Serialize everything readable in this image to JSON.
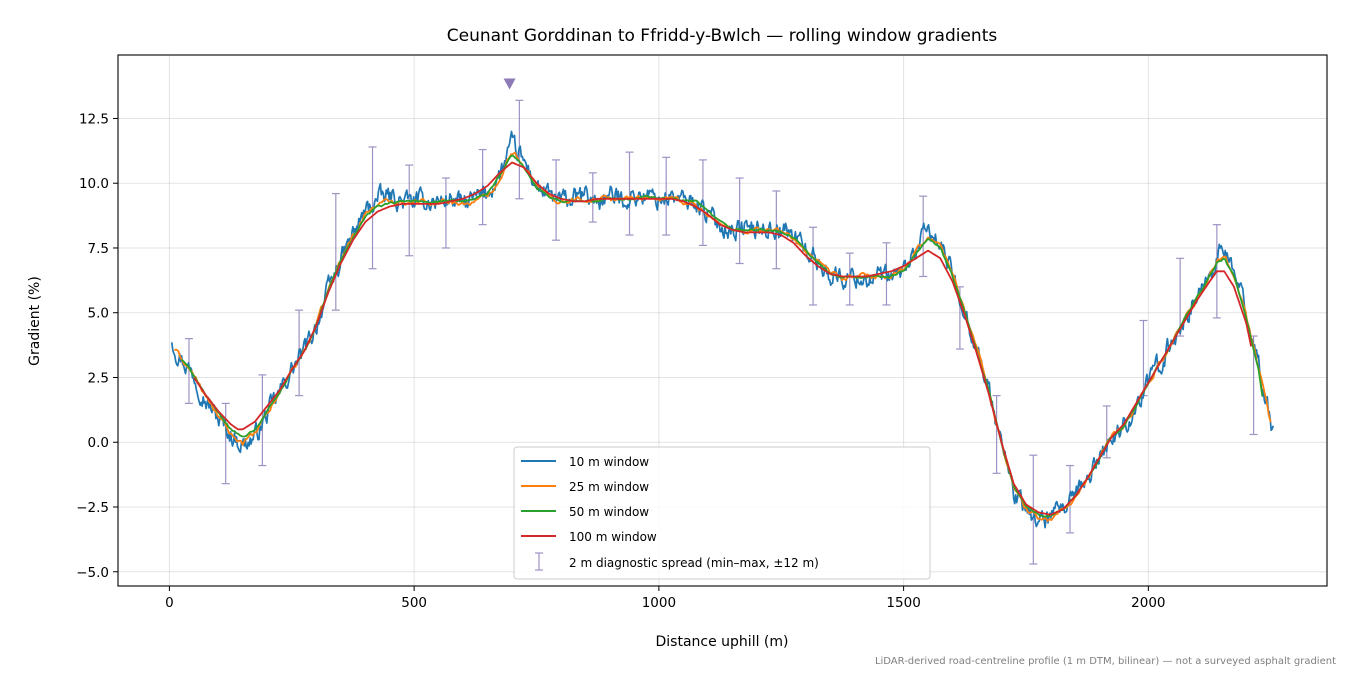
{
  "chart_data": {
    "type": "line",
    "title": "Ceunant Gorddinan to Ffridd-y-Bwlch — rolling window gradients",
    "xlabel": "Distance uphill (m)",
    "ylabel": "Gradient (%)",
    "xlim": [
      -105,
      2365
    ],
    "ylim": [
      -5.55,
      14.95
    ],
    "xticks": [
      0,
      500,
      1000,
      1500,
      2000
    ],
    "xtick_labels": [
      "0",
      "500",
      "1000",
      "1500",
      "2000"
    ],
    "yticks": [
      -5.0,
      -2.5,
      0.0,
      2.5,
      5.0,
      7.5,
      10.0,
      12.5
    ],
    "ytick_labels": [
      "−5.0",
      "−2.5",
      "0.0",
      "2.5",
      "5.0",
      "7.5",
      "10.0",
      "12.5"
    ],
    "grid": true,
    "legend_position": "lower center",
    "footnote": "LiDAR-derived road-centreline profile (1 m DTM, bilinear) — not a surveyed asphalt gradient",
    "peak_marker": {
      "x": 695,
      "y": 13.85
    },
    "series": [
      {
        "name": "10 m window",
        "color": "#1f77b4",
        "noise": 0.32,
        "x": [
          5,
          15,
          30,
          50,
          75,
          100,
          125,
          150,
          175,
          200,
          225,
          250,
          275,
          300,
          325,
          350,
          375,
          400,
          425,
          450,
          475,
          500,
          525,
          550,
          575,
          600,
          625,
          650,
          675,
          700,
          725,
          750,
          775,
          800,
          825,
          850,
          875,
          900,
          925,
          950,
          975,
          1000,
          1025,
          1050,
          1075,
          1100,
          1125,
          1150,
          1175,
          1200,
          1225,
          1250,
          1275,
          1300,
          1325,
          1350,
          1375,
          1400,
          1425,
          1450,
          1475,
          1500,
          1525,
          1550,
          1575,
          1600,
          1625,
          1650,
          1675,
          1700,
          1725,
          1750,
          1775,
          1800,
          1825,
          1850,
          1875,
          1900,
          1925,
          1950,
          1975,
          2000,
          2025,
          2050,
          2075,
          2100,
          2125,
          2140,
          2155,
          2175,
          2200,
          2225,
          2240,
          2255
        ],
        "y": [
          4.0,
          3.5,
          3.1,
          2.6,
          1.6,
          0.9,
          0.3,
          -0.1,
          0.2,
          1.1,
          1.9,
          2.8,
          3.5,
          4.5,
          5.9,
          7.0,
          8.0,
          8.9,
          9.4,
          9.5,
          9.3,
          9.3,
          9.3,
          9.3,
          9.4,
          9.2,
          9.4,
          9.6,
          10.3,
          11.5,
          10.8,
          9.9,
          9.5,
          9.3,
          9.4,
          9.5,
          9.3,
          9.5,
          9.4,
          9.5,
          9.5,
          9.4,
          9.5,
          9.3,
          9.3,
          8.8,
          8.4,
          8.2,
          8.3,
          8.2,
          8.3,
          8.2,
          8.0,
          7.5,
          6.9,
          6.5,
          6.3,
          6.4,
          6.3,
          6.4,
          6.3,
          6.6,
          7.4,
          8.2,
          7.6,
          6.5,
          5.1,
          3.6,
          1.9,
          0.0,
          -1.9,
          -2.7,
          -3.0,
          -3.0,
          -2.6,
          -2.2,
          -1.4,
          -0.6,
          0.2,
          0.6,
          1.4,
          2.3,
          3.1,
          3.9,
          4.8,
          5.6,
          6.5,
          7.1,
          7.4,
          6.6,
          5.0,
          3.0,
          1.5,
          0.5
        ]
      },
      {
        "name": "25 m window",
        "color": "#ff7f0e",
        "noise": 0.1,
        "x": [
          10,
          30,
          50,
          75,
          100,
          125,
          150,
          175,
          200,
          225,
          250,
          275,
          300,
          325,
          350,
          375,
          400,
          425,
          450,
          475,
          500,
          525,
          550,
          575,
          600,
          625,
          650,
          675,
          700,
          725,
          750,
          775,
          800,
          825,
          850,
          875,
          900,
          925,
          950,
          975,
          1000,
          1025,
          1050,
          1075,
          1100,
          1125,
          1150,
          1175,
          1200,
          1225,
          1250,
          1275,
          1300,
          1325,
          1350,
          1375,
          1400,
          1425,
          1450,
          1475,
          1500,
          1525,
          1550,
          1575,
          1600,
          1625,
          1650,
          1675,
          1700,
          1725,
          1750,
          1775,
          1800,
          1825,
          1850,
          1875,
          1900,
          1925,
          1950,
          1975,
          2000,
          2025,
          2050,
          2075,
          2100,
          2125,
          2140,
          2155,
          2175,
          2200,
          2225,
          2250
        ],
        "y": [
          3.6,
          3.1,
          2.6,
          1.7,
          1.0,
          0.3,
          0.0,
          0.3,
          1.1,
          1.9,
          2.8,
          3.5,
          4.5,
          5.9,
          7.0,
          8.0,
          8.8,
          9.2,
          9.3,
          9.3,
          9.3,
          9.3,
          9.3,
          9.3,
          9.2,
          9.3,
          9.5,
          10.2,
          11.3,
          10.7,
          9.9,
          9.5,
          9.3,
          9.4,
          9.4,
          9.4,
          9.4,
          9.4,
          9.4,
          9.5,
          9.4,
          9.4,
          9.3,
          9.2,
          8.8,
          8.4,
          8.2,
          8.2,
          8.2,
          8.2,
          8.1,
          7.9,
          7.4,
          6.9,
          6.5,
          6.3,
          6.4,
          6.4,
          6.4,
          6.4,
          6.6,
          7.3,
          8.0,
          7.6,
          6.5,
          5.1,
          3.6,
          1.9,
          0.0,
          -1.8,
          -2.6,
          -2.9,
          -3.0,
          -2.6,
          -2.2,
          -1.4,
          -0.6,
          0.2,
          0.6,
          1.4,
          2.3,
          3.1,
          3.9,
          4.8,
          5.6,
          6.4,
          7.0,
          7.2,
          6.5,
          4.9,
          2.9,
          0.7
        ]
      },
      {
        "name": "50 m window",
        "color": "#2ca02c",
        "noise": 0.04,
        "x": [
          25,
          50,
          75,
          100,
          125,
          150,
          175,
          200,
          225,
          250,
          275,
          300,
          325,
          350,
          375,
          400,
          425,
          450,
          475,
          500,
          525,
          550,
          575,
          600,
          625,
          650,
          675,
          700,
          725,
          750,
          775,
          800,
          825,
          850,
          875,
          900,
          925,
          950,
          975,
          1000,
          1025,
          1050,
          1075,
          1100,
          1125,
          1150,
          1175,
          1200,
          1225,
          1250,
          1275,
          1300,
          1325,
          1350,
          1375,
          1400,
          1425,
          1450,
          1475,
          1500,
          1525,
          1550,
          1575,
          1600,
          1625,
          1650,
          1675,
          1700,
          1725,
          1750,
          1775,
          1800,
          1825,
          1850,
          1875,
          1900,
          1925,
          1950,
          1975,
          2000,
          2025,
          2050,
          2075,
          2100,
          2125,
          2140,
          2155,
          2175,
          2200,
          2225,
          2235
        ],
        "y": [
          3.2,
          2.6,
          1.8,
          1.1,
          0.5,
          0.2,
          0.5,
          1.2,
          1.9,
          2.8,
          3.5,
          4.5,
          5.9,
          7.0,
          7.9,
          8.7,
          9.1,
          9.2,
          9.3,
          9.3,
          9.3,
          9.3,
          9.3,
          9.3,
          9.4,
          9.6,
          10.3,
          11.1,
          10.6,
          9.8,
          9.5,
          9.3,
          9.3,
          9.3,
          9.3,
          9.4,
          9.4,
          9.4,
          9.5,
          9.4,
          9.4,
          9.3,
          9.3,
          8.9,
          8.5,
          8.2,
          8.2,
          8.2,
          8.2,
          8.1,
          7.9,
          7.4,
          6.9,
          6.5,
          6.4,
          6.4,
          6.4,
          6.4,
          6.4,
          6.6,
          7.3,
          7.9,
          7.5,
          6.4,
          5.0,
          3.5,
          1.9,
          0.0,
          -1.7,
          -2.5,
          -2.8,
          -2.9,
          -2.6,
          -2.1,
          -1.4,
          -0.6,
          0.2,
          0.6,
          1.4,
          2.3,
          3.1,
          3.9,
          4.8,
          5.6,
          6.4,
          6.9,
          7.1,
          6.4,
          4.8,
          2.8,
          1.5
        ]
      },
      {
        "name": "100 m window",
        "color": "#d62728",
        "noise": 0.0,
        "x": [
          50,
          75,
          100,
          125,
          140,
          150,
          175,
          200,
          225,
          250,
          275,
          300,
          325,
          350,
          375,
          400,
          425,
          450,
          475,
          500,
          525,
          550,
          575,
          600,
          625,
          650,
          675,
          700,
          725,
          750,
          775,
          800,
          825,
          850,
          875,
          900,
          925,
          950,
          975,
          1000,
          1025,
          1050,
          1075,
          1100,
          1125,
          1150,
          1175,
          1200,
          1225,
          1250,
          1275,
          1300,
          1325,
          1350,
          1375,
          1400,
          1425,
          1450,
          1475,
          1500,
          1525,
          1550,
          1575,
          1600,
          1625,
          1650,
          1675,
          1700,
          1725,
          1750,
          1775,
          1800,
          1825,
          1850,
          1875,
          1900,
          1925,
          1950,
          1975,
          2000,
          2025,
          2050,
          2075,
          2100,
          2125,
          2140,
          2155,
          2175,
          2200,
          2210
        ],
        "y": [
          2.5,
          1.8,
          1.2,
          0.7,
          0.5,
          0.5,
          0.8,
          1.4,
          2.0,
          2.8,
          3.5,
          4.5,
          5.8,
          6.9,
          7.8,
          8.5,
          8.9,
          9.1,
          9.2,
          9.2,
          9.2,
          9.2,
          9.3,
          9.4,
          9.6,
          9.9,
          10.4,
          10.8,
          10.6,
          10.0,
          9.6,
          9.4,
          9.3,
          9.3,
          9.4,
          9.4,
          9.4,
          9.4,
          9.4,
          9.4,
          9.4,
          9.3,
          9.1,
          8.8,
          8.4,
          8.2,
          8.1,
          8.1,
          8.1,
          8.0,
          7.7,
          7.2,
          6.8,
          6.5,
          6.4,
          6.4,
          6.4,
          6.5,
          6.6,
          6.8,
          7.1,
          7.4,
          7.1,
          6.2,
          4.9,
          3.4,
          1.8,
          0.0,
          -1.6,
          -2.4,
          -2.7,
          -2.8,
          -2.6,
          -2.1,
          -1.4,
          -0.6,
          0.2,
          0.7,
          1.5,
          2.3,
          3.1,
          3.9,
          4.7,
          5.5,
          6.2,
          6.6,
          6.6,
          6.0,
          4.6,
          3.7
        ]
      }
    ],
    "error_bars": {
      "name": "2 m diagnostic spread (min–max, ±12 m)",
      "color": "#9f92c4",
      "x": [
        40,
        115,
        190,
        265,
        340,
        415,
        490,
        565,
        640,
        715,
        790,
        865,
        940,
        1015,
        1090,
        1165,
        1240,
        1315,
        1390,
        1465,
        1540,
        1615,
        1690,
        1765,
        1840,
        1915,
        1990,
        2065,
        2140,
        2215
      ],
      "low": [
        1.5,
        -1.6,
        -0.9,
        1.8,
        5.1,
        6.7,
        7.2,
        7.5,
        8.4,
        9.4,
        7.8,
        8.5,
        8.0,
        8.0,
        7.6,
        6.9,
        6.7,
        5.3,
        5.3,
        5.3,
        6.4,
        3.6,
        -1.2,
        -4.7,
        -3.5,
        -0.6,
        1.8,
        4.1,
        4.8,
        0.3
      ],
      "high": [
        4.0,
        1.5,
        2.6,
        5.1,
        9.6,
        11.4,
        10.7,
        10.2,
        11.3,
        13.2,
        10.9,
        10.4,
        11.2,
        11.0,
        10.9,
        10.2,
        9.7,
        8.3,
        7.3,
        7.7,
        9.5,
        6.0,
        1.8,
        -0.5,
        -0.9,
        1.4,
        4.7,
        7.1,
        8.4,
        4.1
      ]
    }
  }
}
